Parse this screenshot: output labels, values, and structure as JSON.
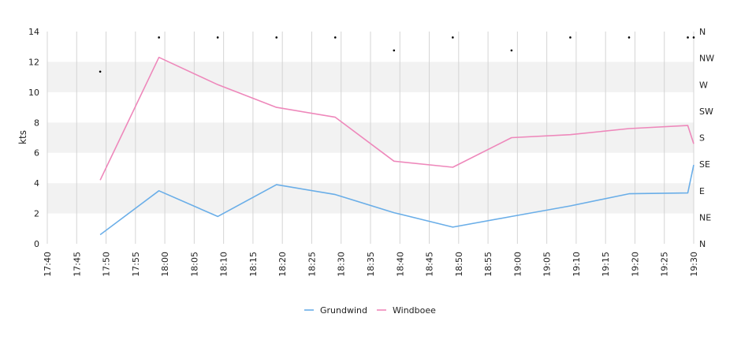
{
  "chart_data": {
    "type": "line",
    "ylabel": "kts",
    "ylim": [
      0,
      14
    ],
    "y_ticks": [
      "0",
      "2",
      "4",
      "6",
      "8",
      "10",
      "12",
      "14"
    ],
    "x_ticks": [
      "17:40",
      "17:45",
      "17:50",
      "17:55",
      "18:00",
      "18:05",
      "18:10",
      "18:15",
      "18:20",
      "18:25",
      "18:30",
      "18:35",
      "18:40",
      "18:45",
      "18:50",
      "18:55",
      "19:00",
      "19:05",
      "19:10",
      "19:15",
      "19:20",
      "19:25",
      "19:30"
    ],
    "xlim": [
      "17:40",
      "19:30"
    ],
    "direction_axis": {
      "labels": [
        "N",
        "NE",
        "E",
        "SE",
        "S",
        "SW",
        "W",
        "NW",
        "N"
      ],
      "range_degrees": [
        0,
        360
      ]
    },
    "grid": true,
    "band_colors": {
      "shaded": "#f2f2f2",
      "clear": "#ffffff"
    },
    "legend_position": "bottom-center",
    "series": [
      {
        "name": "Grundwind",
        "color": "#6aaee8",
        "x": [
          "17:49",
          "17:59",
          "18:09",
          "18:19",
          "18:29",
          "18:39",
          "18:49",
          "18:59",
          "19:09",
          "19:19",
          "19:29",
          "19:30"
        ],
        "values": [
          0.6,
          3.5,
          1.8,
          3.9,
          3.25,
          2.05,
          1.1,
          1.8,
          2.5,
          3.3,
          3.35,
          5.2
        ]
      },
      {
        "name": "Windboee",
        "color": "#ee88bb",
        "x": [
          "17:49",
          "17:59",
          "18:09",
          "18:19",
          "18:29",
          "18:39",
          "18:49",
          "18:59",
          "19:09",
          "19:19",
          "19:29",
          "19:30"
        ],
        "values": [
          4.2,
          12.3,
          10.5,
          9.0,
          8.35,
          5.45,
          5.05,
          7.0,
          7.2,
          7.6,
          7.8,
          6.6
        ]
      }
    ],
    "direction_points": {
      "x": [
        "17:49",
        "17:59",
        "18:09",
        "18:19",
        "18:29",
        "18:39",
        "18:49",
        "18:59",
        "19:09",
        "19:19",
        "19:29",
        "19:30"
      ],
      "degrees": [
        292,
        350,
        350,
        350,
        350,
        328,
        350,
        328,
        350,
        350,
        350,
        350
      ]
    }
  }
}
